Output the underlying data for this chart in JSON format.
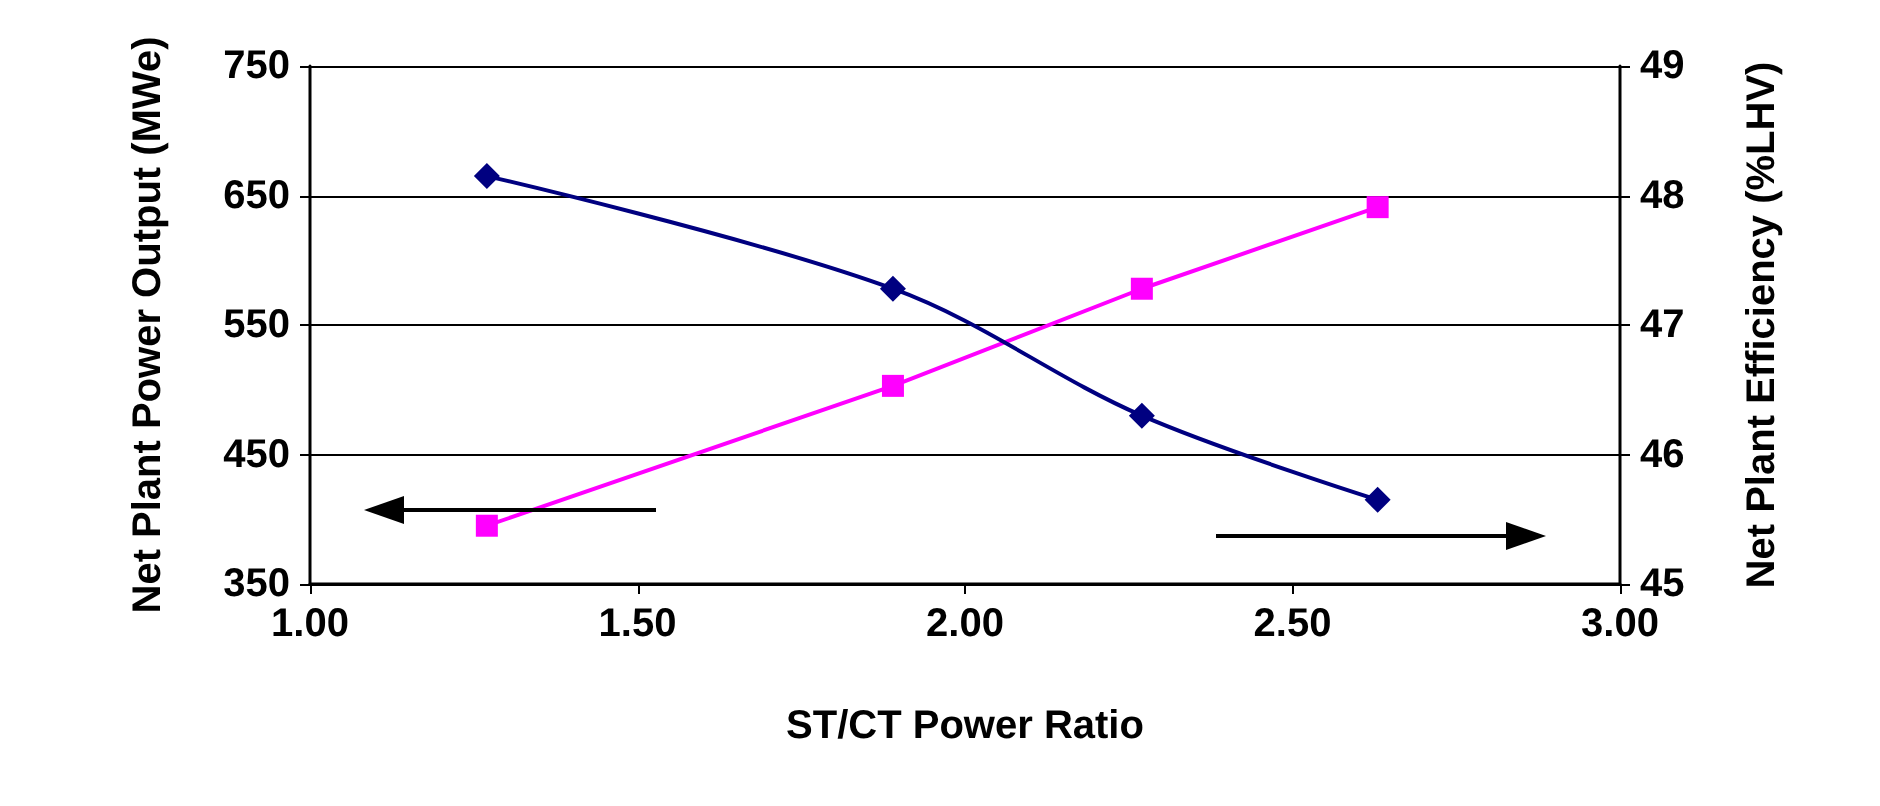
{
  "chart_data": {
    "type": "line",
    "xlabel": "ST/CT Power Ratio",
    "ylabel": "Net Plant Power Output (MWe)",
    "y2label": "Net Plant Efficiency (%LHV)",
    "xlim": [
      1,
      3
    ],
    "xticks": [
      {
        "value": 1,
        "label": "1.00"
      },
      {
        "value": 1.5,
        "label": "1.50"
      },
      {
        "value": 2,
        "label": "2.00"
      },
      {
        "value": 2.5,
        "label": "2.50"
      },
      {
        "value": 3,
        "label": "3.00"
      }
    ],
    "ylim": [
      350,
      750
    ],
    "yticks": [
      350,
      450,
      550,
      650,
      750
    ],
    "y2lim": [
      45,
      49
    ],
    "y2ticks": [
      45,
      46,
      47,
      48,
      49
    ],
    "grid": "y",
    "series": [
      {
        "color": "#ff00ff",
        "marker": "square",
        "x": [
          1.27,
          1.89,
          2.27,
          2.63
        ],
        "values": [
          395,
          503,
          578,
          641
        ]
      },
      {
        "color": "#000080",
        "marker": "diamond",
        "axis": "y2",
        "x": [
          1.27,
          1.89,
          2.27,
          2.63
        ],
        "values": [
          48.15,
          47.28,
          46.3,
          45.65
        ]
      }
    ]
  }
}
